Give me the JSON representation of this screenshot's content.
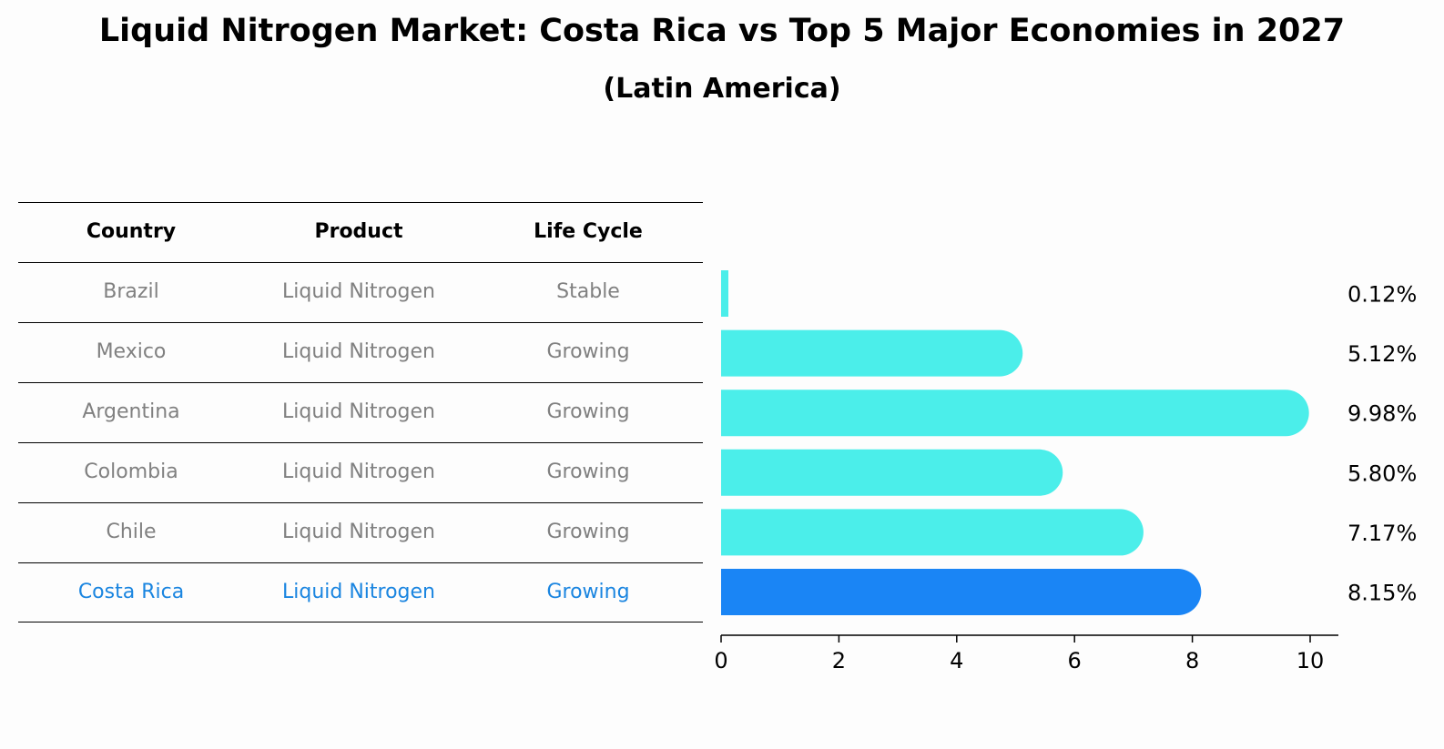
{
  "title": "Liquid Nitrogen Market: Costa Rica vs Top 5 Major Economies in 2027",
  "subtitle": "(Latin America)",
  "table": {
    "headers": [
      "Country",
      "Product",
      "Life Cycle"
    ],
    "rows": [
      {
        "country": "Brazil",
        "product": "Liquid Nitrogen",
        "life_cycle": "Stable"
      },
      {
        "country": "Mexico",
        "product": "Liquid Nitrogen",
        "life_cycle": "Growing"
      },
      {
        "country": "Argentina",
        "product": "Liquid Nitrogen",
        "life_cycle": "Growing"
      },
      {
        "country": "Colombia",
        "product": "Liquid Nitrogen",
        "life_cycle": "Growing"
      },
      {
        "country": "Chile",
        "product": "Liquid Nitrogen",
        "life_cycle": "Growing"
      },
      {
        "country": "Costa Rica",
        "product": "Liquid Nitrogen",
        "life_cycle": "Growing"
      }
    ]
  },
  "chart_data": {
    "type": "bar",
    "orientation": "horizontal",
    "categories": [
      "Brazil",
      "Mexico",
      "Argentina",
      "Colombia",
      "Chile",
      "Costa Rica"
    ],
    "values": [
      0.12,
      5.12,
      9.98,
      5.8,
      7.17,
      8.15
    ],
    "value_labels": [
      "0.12%",
      "5.12%",
      "9.98%",
      "5.80%",
      "7.17%",
      "8.15%"
    ],
    "highlight": "Costa Rica",
    "xlim": [
      0,
      10.5
    ],
    "xticks": [
      0,
      2,
      4,
      6,
      8,
      10
    ],
    "xtick_labels": [
      "0",
      "2",
      "4",
      "6",
      "8",
      "10"
    ],
    "colors": {
      "default": "#4beeea",
      "highlight": "#1a85f5",
      "text_highlight": "#1a85e0",
      "text_muted": "#808080"
    }
  }
}
